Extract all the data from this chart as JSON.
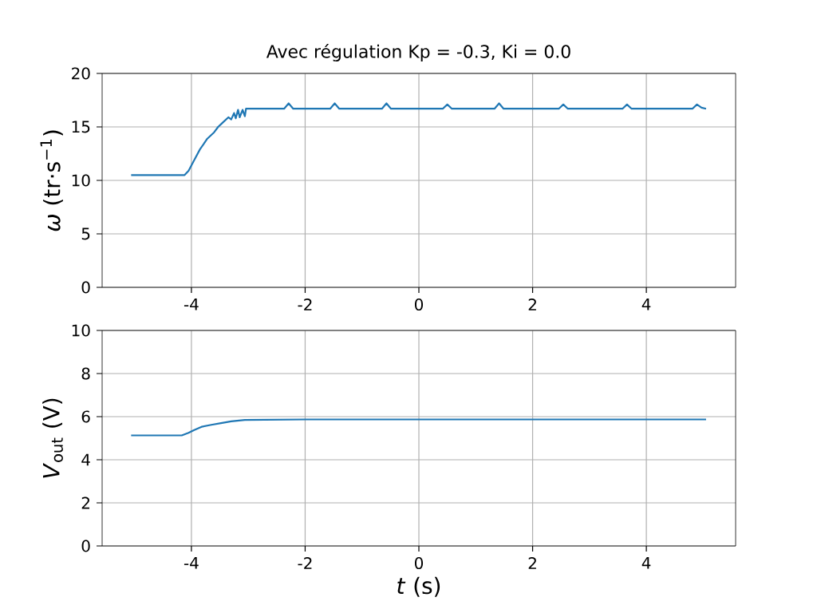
{
  "chart_data": [
    {
      "type": "line",
      "title": "Avec régulation Kp = -0.3, Ki = 0.0",
      "ylabel": "*ω* (tr·s$^{−1}$)",
      "x": [
        -5.06,
        -4.6,
        -4.12,
        -4.05,
        -3.95,
        -3.85,
        -3.72,
        -3.6,
        -3.53,
        -3.45,
        -3.35,
        -3.3,
        -3.25,
        -3.22,
        -3.18,
        -3.15,
        -3.1,
        -3.06,
        -3.04,
        -2.37,
        -2.29,
        -2.21,
        -1.56,
        -1.48,
        -1.4,
        -0.65,
        -0.57,
        -0.49,
        0.42,
        0.5,
        0.58,
        1.33,
        1.41,
        1.49,
        2.46,
        2.54,
        2.62,
        3.58,
        3.66,
        3.74,
        4.81,
        4.89,
        4.97,
        5.05
      ],
      "values": [
        10.5,
        10.5,
        10.5,
        10.9,
        11.9,
        12.9,
        13.9,
        14.5,
        15.0,
        15.4,
        15.9,
        15.7,
        16.3,
        15.8,
        16.6,
        15.9,
        16.6,
        16.0,
        16.7,
        16.7,
        17.2,
        16.7,
        16.7,
        17.2,
        16.7,
        16.7,
        17.2,
        16.7,
        16.7,
        17.1,
        16.7,
        16.7,
        17.2,
        16.7,
        16.7,
        17.1,
        16.7,
        16.7,
        17.1,
        16.7,
        16.7,
        17.1,
        16.8,
        16.7
      ],
      "color": "#1f77b4",
      "xlim": [
        -5.57,
        5.57
      ],
      "ylim": [
        0,
        20
      ],
      "xticks": [
        -4,
        -2,
        0,
        2,
        4
      ],
      "yticks": [
        0,
        5,
        10,
        15,
        20
      ],
      "grid": true
    },
    {
      "type": "line",
      "xlabel": "*t* (s)",
      "ylabel": "*V*$_{out}$ (V)",
      "x": [
        -5.06,
        -4.17,
        -4.05,
        -3.95,
        -3.82,
        -3.65,
        -3.48,
        -3.3,
        -3.06,
        -2.0,
        0,
        2,
        4,
        5.05
      ],
      "values": [
        5.13,
        5.13,
        5.25,
        5.38,
        5.53,
        5.62,
        5.7,
        5.78,
        5.85,
        5.87,
        5.87,
        5.87,
        5.87,
        5.87
      ],
      "color": "#1f77b4",
      "xlim": [
        -5.57,
        5.57
      ],
      "ylim": [
        0,
        10
      ],
      "xticks": [
        -4,
        -2,
        0,
        2,
        4
      ],
      "yticks": [
        0,
        2,
        4,
        6,
        8,
        10
      ],
      "grid": true
    }
  ]
}
